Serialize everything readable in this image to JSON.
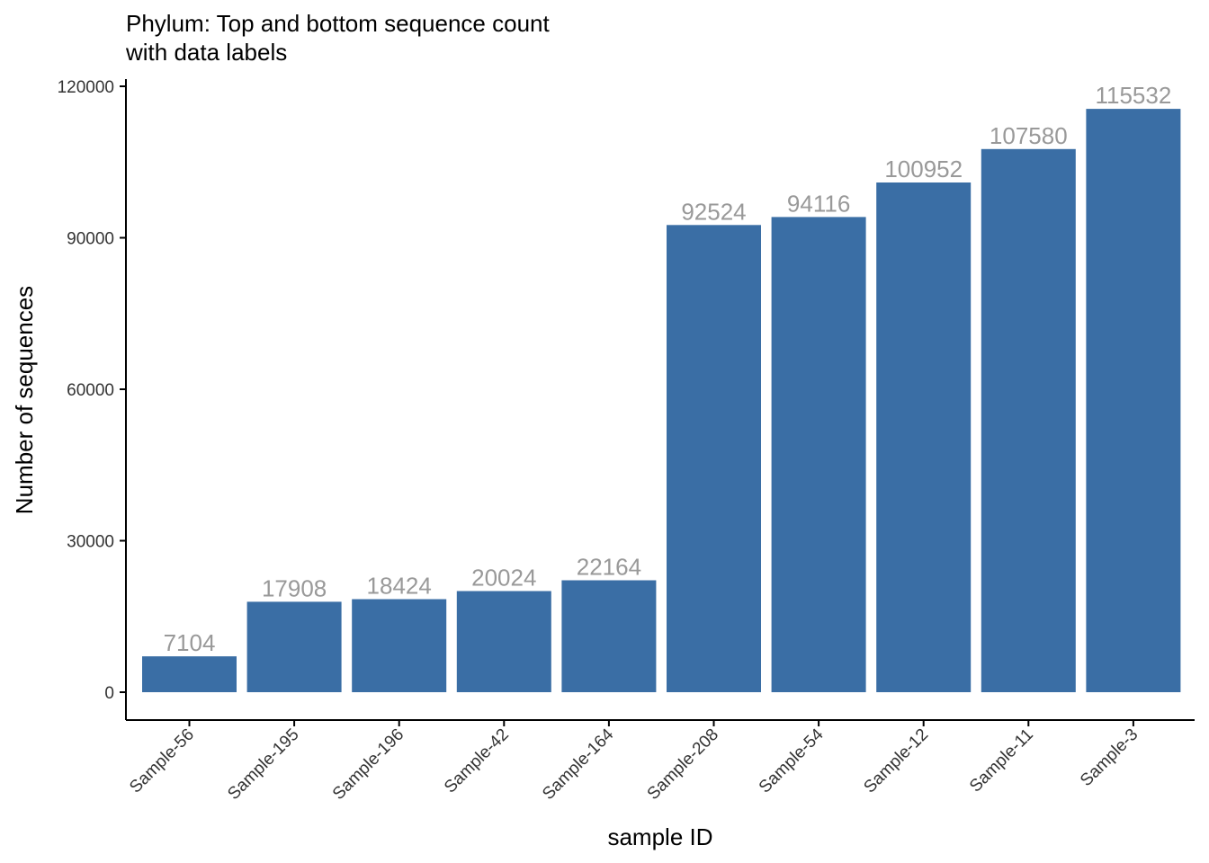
{
  "chart_data": {
    "type": "bar",
    "title_lines": [
      "Phylum: Top and bottom sequence count",
      "with data labels"
    ],
    "xlabel": "sample ID",
    "ylabel": "Number of sequences",
    "categories": [
      "Sample-56",
      "Sample-195",
      "Sample-196",
      "Sample-42",
      "Sample-164",
      "Sample-208",
      "Sample-54",
      "Sample-12",
      "Sample-11",
      "Sample-3"
    ],
    "values": [
      7104,
      17908,
      18424,
      20024,
      22164,
      92524,
      94116,
      100952,
      107580,
      115532
    ],
    "y_ticks": [
      0,
      30000,
      60000,
      90000,
      120000
    ],
    "ylim": [
      0,
      120000
    ],
    "grid": false,
    "legend": "none",
    "colors": {
      "bar": "#3A6EA5",
      "data_label": "#999999",
      "axis": "#000000",
      "tick_label": "#333333"
    }
  }
}
